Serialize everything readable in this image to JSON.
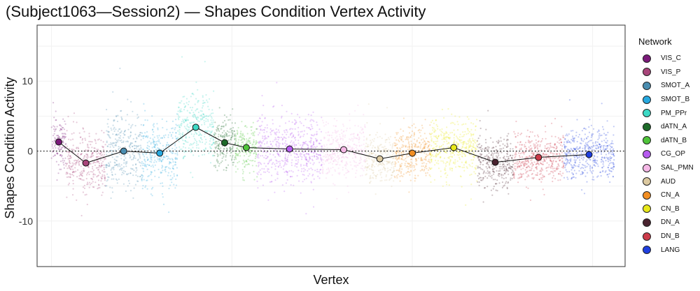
{
  "chart_data": {
    "type": "scatter",
    "title": "(Subject1063—Session2) — Shapes Condition Vertex Activity",
    "xlabel": "Vertex",
    "ylabel": "Shapes Condition Activity",
    "ylim": [
      -16.5,
      18
    ],
    "yticks": [
      -10,
      0,
      10
    ],
    "ytick_labels": [
      "-10",
      "0",
      "10"
    ],
    "grid": true,
    "reference_line_y": 0,
    "legend_title": "Network",
    "legend_position": "right",
    "series": [
      {
        "name": "VIS_C",
        "color": "#7B1A7A",
        "x_range": [
          0,
          400
        ],
        "mean": 1.3,
        "spread": 3.5
      },
      {
        "name": "VIS_P",
        "color": "#A8457A",
        "x_range": [
          400,
          1500
        ],
        "mean": -1.7,
        "spread": 4.0
      },
      {
        "name": "SMOT_A",
        "color": "#4A8DB0",
        "x_range": [
          1500,
          2500
        ],
        "mean": 0.0,
        "spread": 5.0
      },
      {
        "name": "SMOT_B",
        "color": "#27A9E0",
        "x_range": [
          2500,
          3500
        ],
        "mean": -0.3,
        "spread": 4.8
      },
      {
        "name": "PM_PPr",
        "color": "#3DD9C5",
        "x_range": [
          3500,
          4500
        ],
        "mean": 3.4,
        "spread": 4.5
      },
      {
        "name": "dATN_A",
        "color": "#1E6B2A",
        "x_range": [
          4500,
          5100
        ],
        "mean": 1.2,
        "spread": 3.5
      },
      {
        "name": "dATN_B",
        "color": "#4FC43A",
        "x_range": [
          5100,
          5700
        ],
        "mean": 0.5,
        "spread": 3.5
      },
      {
        "name": "CG_OP",
        "color": "#B65BF0",
        "x_range": [
          5700,
          7500
        ],
        "mean": 0.3,
        "spread": 4.5
      },
      {
        "name": "SAL_PMN",
        "color": "#F5B8E6",
        "x_range": [
          7500,
          8700
        ],
        "mean": 0.2,
        "spread": 4.0
      },
      {
        "name": "AUD",
        "color": "#DCC9A0",
        "x_range": [
          8700,
          9500
        ],
        "mean": -1.1,
        "spread": 3.5
      },
      {
        "name": "CN_A",
        "color": "#F28E22",
        "x_range": [
          9500,
          10500
        ],
        "mean": -0.3,
        "spread": 3.5
      },
      {
        "name": "CN_B",
        "color": "#E8E81A",
        "x_range": [
          10500,
          11800
        ],
        "mean": 0.5,
        "spread": 4.0
      },
      {
        "name": "DN_A",
        "color": "#4A2430",
        "x_range": [
          11800,
          12800
        ],
        "mean": -1.6,
        "spread": 3.5
      },
      {
        "name": "DN_B",
        "color": "#CC3B4A",
        "x_range": [
          12800,
          14200
        ],
        "mean": -0.9,
        "spread": 3.5
      },
      {
        "name": "LANG",
        "color": "#1F3FE0",
        "x_range": [
          14200,
          15600
        ],
        "mean": -0.5,
        "spread": 3.5
      }
    ]
  }
}
